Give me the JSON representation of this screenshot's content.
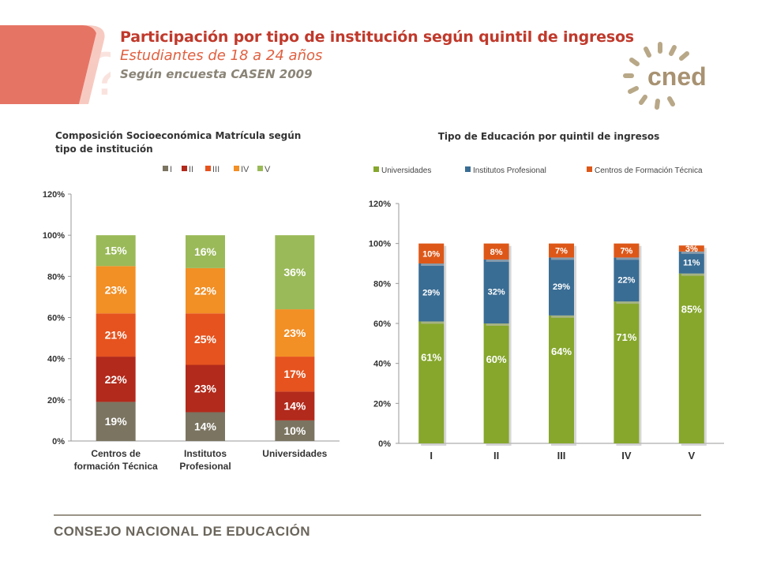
{
  "header": {
    "title": "Participación por tipo de institución según quintil de ingresos",
    "subtitle": "Estudiantes  de 18 a 24 años",
    "source": "Según encuesta CASEN 2009"
  },
  "logo": {
    "text": "cned",
    "icon": "sunburst-icon"
  },
  "footer": {
    "text": "CONSEJO NACIONAL DE EDUCACIÓN"
  },
  "colors": {
    "brand_red": "#c0392b",
    "q1": "#7a7461",
    "q2": "#b22a1c",
    "q3": "#e6531f",
    "q4": "#f28f25",
    "q5": "#9aba59",
    "universidades": "#86a72c",
    "institutos": "#3a6d94",
    "cft": "#dd5818"
  },
  "chart_data": [
    {
      "type": "bar",
      "stacked": true,
      "title": "Composición Socioeconómica Matrícula según tipo de institución",
      "categories": [
        "Centros de formación Técnica",
        "Institutos Profesional",
        "Universidades"
      ],
      "category_lines": [
        [
          "Centros de",
          "formación Técnica"
        ],
        [
          "Institutos",
          "Profesional"
        ],
        [
          "Universidades"
        ]
      ],
      "series": [
        {
          "name": "I",
          "values": [
            19,
            14,
            10
          ],
          "labels": [
            "19%",
            "14%",
            "10%"
          ]
        },
        {
          "name": "II",
          "values": [
            22,
            23,
            14
          ],
          "labels": [
            "22%",
            "23%",
            "14%"
          ]
        },
        {
          "name": "III",
          "values": [
            21,
            25,
            17
          ],
          "labels": [
            "21%",
            "25%",
            "17%"
          ]
        },
        {
          "name": "IV",
          "values": [
            23,
            22,
            23
          ],
          "labels": [
            "23%",
            "22%",
            "23%"
          ]
        },
        {
          "name": "V",
          "values": [
            15,
            16,
            36
          ],
          "labels": [
            "15%",
            "16%",
            "36%"
          ]
        }
      ],
      "ylim": [
        0,
        120
      ],
      "yticks": [
        "0%",
        "20%",
        "40%",
        "60%",
        "80%",
        "100%",
        "120%"
      ],
      "legend": "top-right",
      "grid": false
    },
    {
      "type": "bar",
      "stacked": true,
      "title": "Tipo de Educación por quintil de ingresos",
      "categories": [
        "I",
        "II",
        "III",
        "IV",
        "V"
      ],
      "series": [
        {
          "name": "Universidades",
          "values": [
            61,
            60,
            64,
            71,
            85
          ],
          "labels": [
            "61%",
            "60%",
            "64%",
            "71%",
            "85%"
          ]
        },
        {
          "name": "Institutos Profesional",
          "values": [
            29,
            32,
            29,
            22,
            11
          ],
          "labels": [
            "29%",
            "32%",
            "29%",
            "22%",
            "11%"
          ]
        },
        {
          "name": "Centros de Formación Técnica",
          "values": [
            10,
            8,
            7,
            7,
            3
          ],
          "labels": [
            "10%",
            "8%",
            "7%",
            "7%",
            "3%"
          ]
        }
      ],
      "ylim": [
        0,
        120
      ],
      "yticks": [
        "0%",
        "20%",
        "40%",
        "60%",
        "80%",
        "100%",
        "120%"
      ],
      "legend": "top",
      "grid": false
    }
  ]
}
